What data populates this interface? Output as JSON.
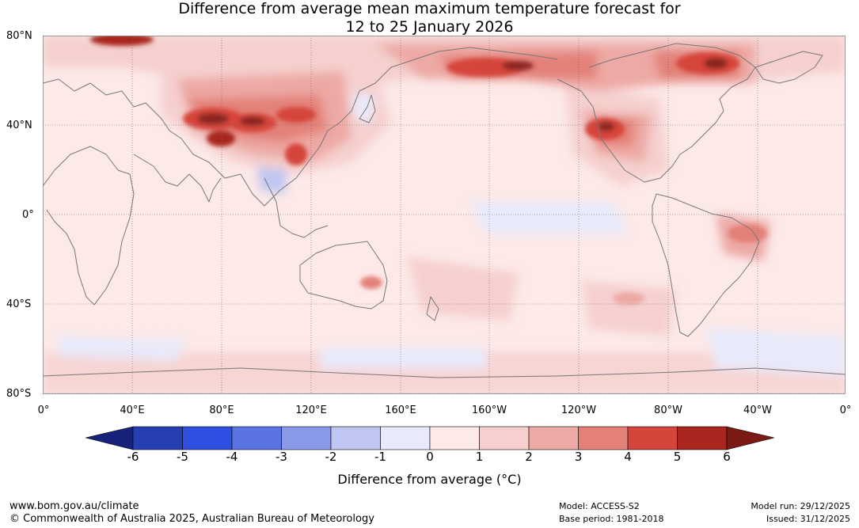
{
  "title": {
    "line1": "Difference from average mean maximum temperature forecast for",
    "line2": "12 to 25 January 2026"
  },
  "map": {
    "lat_labels": [
      "80°N",
      "40°N",
      "0°",
      "40°S",
      "80°S"
    ],
    "lon_labels": [
      "0°",
      "40°E",
      "80°E",
      "120°E",
      "160°E",
      "160°W",
      "120°W",
      "80°W",
      "40°W",
      "0°"
    ],
    "background_color": "#fce9e8",
    "coast_color": "#777777",
    "grid_color": "#666666"
  },
  "colorbar": {
    "ticks": [
      "-6",
      "-5",
      "-4",
      "-3",
      "-2",
      "-1",
      "0",
      "1",
      "2",
      "3",
      "4",
      "5",
      "6"
    ],
    "colors": [
      "#19227a",
      "#253fb0",
      "#2f4fe0",
      "#5a74e4",
      "#8a9ae8",
      "#bfc6f1",
      "#e8eafb",
      "#fce9e8",
      "#f5d0ce",
      "#eda9a5",
      "#e38178",
      "#d6453b",
      "#a8261e",
      "#7b1a15"
    ],
    "label": "Difference from average (°C)"
  },
  "footer": {
    "website": "www.bom.gov.au/climate",
    "copyright": "© Commonwealth of Australia 2025, Australian Bureau of Meteorology",
    "model": "Model: ACCESS-S2",
    "base_period": "Base period: 1981-2018",
    "model_run": "Model run: 29/12/2025",
    "issued": "Issued: 31/12/2025"
  }
}
